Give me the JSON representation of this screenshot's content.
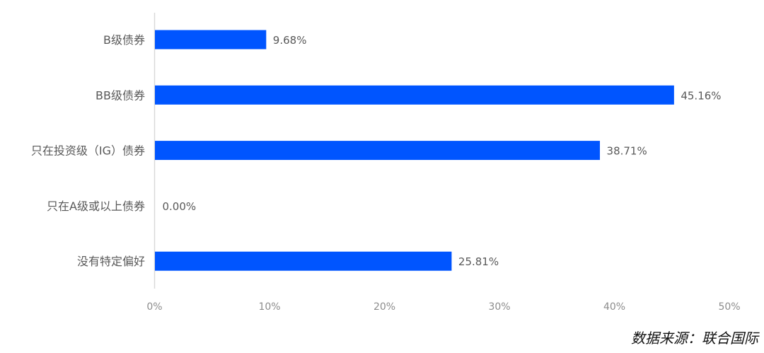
{
  "chart_data": {
    "type": "bar",
    "orientation": "horizontal",
    "categories": [
      "B级债券",
      "BB级债券",
      "只在投资级（IG）债券",
      "只在A级或以上债券",
      "没有特定偏好"
    ],
    "values": [
      9.68,
      45.16,
      38.71,
      0.0,
      25.81
    ],
    "data_labels": [
      "9.68%",
      "45.16%",
      "38.71%",
      "0.00%",
      "25.81%"
    ],
    "x_ticks": [
      "0%",
      "10%",
      "20%",
      "30%",
      "40%",
      "50%"
    ],
    "xlim": [
      0,
      50
    ],
    "grid": false,
    "bar_color": "#0055ff",
    "title": "",
    "xlabel": "",
    "ylabel": ""
  },
  "source": "数据来源：联合国际"
}
